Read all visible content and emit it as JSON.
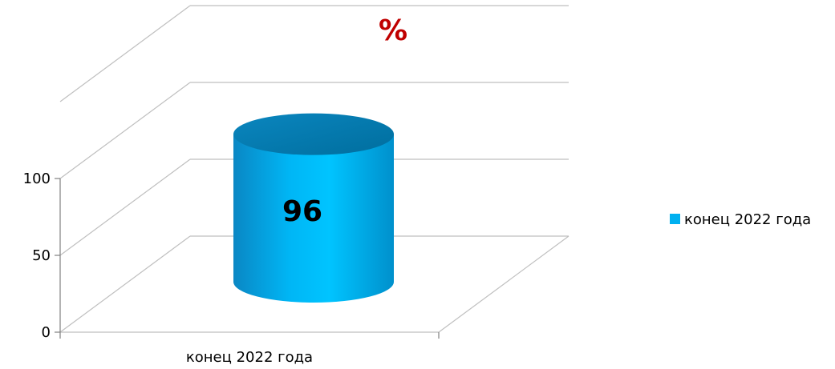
{
  "chart_data": {
    "type": "bar",
    "style": "3d-cylinder",
    "title": "%",
    "categories": [
      "конец 2022 года"
    ],
    "series": [
      {
        "name": "конец 2022 года",
        "values": [
          96
        ]
      }
    ],
    "y_ticks": [
      "0",
      "50",
      "100"
    ],
    "ylim": [
      0,
      150
    ],
    "grid": true,
    "legend_position": "right",
    "data_labels": [
      "96"
    ]
  },
  "colors": {
    "title": "#C00000",
    "bar": "#00B0F0",
    "gridline": "#BFBFBF",
    "axis": "#808080"
  }
}
